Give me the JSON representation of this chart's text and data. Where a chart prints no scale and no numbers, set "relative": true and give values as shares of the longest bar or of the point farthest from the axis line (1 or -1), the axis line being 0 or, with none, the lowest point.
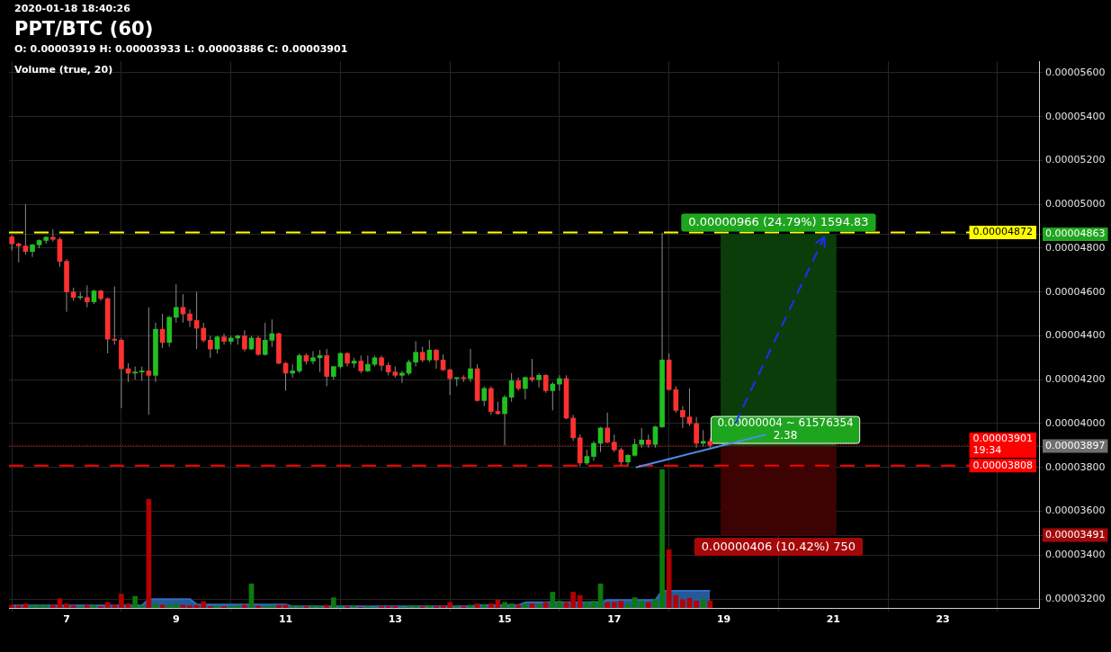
{
  "chart_data": [
    {
      "type": "candlestick",
      "title": "PPT/BTC (60)",
      "subtitle": "2020-01-18 18:40:26",
      "annotations": [
        "O: 0.00003919 H: 0.00003933 L: 0.00003886 C: 0.00003901",
        {
          "text": "0.00000004 ~ 61576354\n2.38",
          "x": "2020-01-20T03:00",
          "y": 3.897e-05
        }
      ],
      "x": [
        "2020-01-06T00:00",
        "2020-01-06T03:00",
        "2020-01-06T06:00",
        "2020-01-06T09:00",
        "2020-01-06T12:00",
        "2020-01-06T15:00",
        "2020-01-06T18:00",
        "2020-01-06T21:00",
        "2020-01-07T00:00",
        "2020-01-07T03:00",
        "2020-01-07T06:00",
        "2020-01-07T09:00",
        "2020-01-07T12:00",
        "2020-01-07T15:00",
        "2020-01-07T18:00",
        "2020-01-07T21:00",
        "2020-01-08T00:00",
        "2020-01-08T03:00",
        "2020-01-08T06:00",
        "2020-01-08T09:00",
        "2020-01-08T12:00",
        "2020-01-08T15:00",
        "2020-01-08T18:00",
        "2020-01-08T21:00",
        "2020-01-09T00:00",
        "2020-01-09T03:00",
        "2020-01-09T06:00",
        "2020-01-09T09:00",
        "2020-01-09T12:00",
        "2020-01-09T15:00",
        "2020-01-09T18:00",
        "2020-01-09T21:00",
        "2020-01-10T00:00",
        "2020-01-10T03:00",
        "2020-01-10T06:00",
        "2020-01-10T09:00",
        "2020-01-10T12:00",
        "2020-01-10T15:00",
        "2020-01-10T18:00",
        "2020-01-10T21:00",
        "2020-01-11T00:00",
        "2020-01-11T03:00",
        "2020-01-11T06:00",
        "2020-01-11T09:00",
        "2020-01-11T12:00",
        "2020-01-11T15:00",
        "2020-01-11T18:00",
        "2020-01-11T21:00",
        "2020-01-12T00:00",
        "2020-01-12T03:00",
        "2020-01-12T06:00",
        "2020-01-12T09:00",
        "2020-01-12T12:00",
        "2020-01-12T15:00",
        "2020-01-12T18:00",
        "2020-01-12T21:00",
        "2020-01-13T00:00",
        "2020-01-13T03:00",
        "2020-01-13T06:00",
        "2020-01-13T09:00",
        "2020-01-13T12:00",
        "2020-01-13T15:00",
        "2020-01-13T18:00",
        "2020-01-13T21:00",
        "2020-01-14T00:00",
        "2020-01-14T03:00",
        "2020-01-14T06:00",
        "2020-01-14T09:00",
        "2020-01-14T12:00",
        "2020-01-14T15:00",
        "2020-01-14T18:00",
        "2020-01-14T21:00",
        "2020-01-15T00:00",
        "2020-01-15T03:00",
        "2020-01-15T06:00",
        "2020-01-15T09:00",
        "2020-01-15T12:00",
        "2020-01-15T15:00",
        "2020-01-15T18:00",
        "2020-01-15T21:00",
        "2020-01-16T00:00",
        "2020-01-16T03:00",
        "2020-01-16T06:00",
        "2020-01-16T09:00",
        "2020-01-16T12:00",
        "2020-01-16T15:00",
        "2020-01-16T18:00",
        "2020-01-16T21:00",
        "2020-01-17T00:00",
        "2020-01-17T03:00",
        "2020-01-17T06:00",
        "2020-01-17T09:00",
        "2020-01-17T12:00",
        "2020-01-17T15:00",
        "2020-01-17T18:00",
        "2020-01-17T21:00",
        "2020-01-18T00:00",
        "2020-01-18T03:00",
        "2020-01-18T06:00",
        "2020-01-18T09:00",
        "2020-01-18T12:00",
        "2020-01-18T15:00",
        "2020-01-18T18:00"
      ],
      "ohlc": [
        [
          4.852e-05,
          4.86e-05,
          4.79e-05,
          4.82e-05
        ],
        [
          4.82e-05,
          4.825e-05,
          4.735e-05,
          4.81e-05
        ],
        [
          4.81e-05,
          5e-05,
          4.77e-05,
          4.785e-05
        ],
        [
          4.785e-05,
          4.82e-05,
          4.76e-05,
          4.815e-05
        ],
        [
          4.815e-05,
          4.84e-05,
          4.8e-05,
          4.835e-05
        ],
        [
          4.835e-05,
          4.855e-05,
          4.82e-05,
          4.85e-05
        ],
        [
          4.85e-05,
          4.886e-05,
          4.83e-05,
          4.84e-05
        ],
        [
          4.84e-05,
          4.85e-05,
          4.715e-05,
          4.74e-05
        ],
        [
          4.74e-05,
          4.75e-05,
          4.51e-05,
          4.6e-05
        ],
        [
          4.6e-05,
          4.62e-05,
          4.56e-05,
          4.575e-05
        ],
        [
          4.575e-05,
          4.6e-05,
          4.565e-05,
          4.575e-05
        ],
        [
          4.575e-05,
          4.63e-05,
          4.53e-05,
          4.555e-05
        ],
        [
          4.555e-05,
          4.61e-05,
          4.545e-05,
          4.605e-05
        ],
        [
          4.605e-05,
          4.61e-05,
          4.56e-05,
          4.57e-05
        ],
        [
          4.57e-05,
          4.575e-05,
          4.32e-05,
          4.385e-05
        ],
        [
          4.385e-05,
          4.625e-05,
          4.36e-05,
          4.38e-05
        ],
        [
          4.38e-05,
          4.39e-05,
          4.07e-05,
          4.25e-05
        ],
        [
          4.25e-05,
          4.275e-05,
          4.19e-05,
          4.23e-05
        ],
        [
          4.23e-05,
          4.26e-05,
          4.2e-05,
          4.235e-05
        ],
        [
          4.235e-05,
          4.26e-05,
          4.195e-05,
          4.24e-05
        ],
        [
          4.24e-05,
          4.53e-05,
          4.04e-05,
          4.22e-05
        ],
        [
          4.22e-05,
          4.46e-05,
          4.19e-05,
          4.43e-05
        ],
        [
          4.43e-05,
          4.5e-05,
          4.345e-05,
          4.37e-05
        ],
        [
          4.37e-05,
          4.49e-05,
          4.35e-05,
          4.485e-05
        ],
        [
          4.485e-05,
          4.635e-05,
          4.46e-05,
          4.53e-05
        ],
        [
          4.53e-05,
          4.59e-05,
          4.46e-05,
          4.5e-05
        ],
        [
          4.5e-05,
          4.52e-05,
          4.44e-05,
          4.47e-05
        ],
        [
          4.47e-05,
          4.6e-05,
          4.34e-05,
          4.435e-05
        ],
        [
          4.435e-05,
          4.46e-05,
          4.37e-05,
          4.38e-05
        ],
        [
          4.38e-05,
          4.4e-05,
          4.3e-05,
          4.34e-05
        ],
        [
          4.34e-05,
          4.4e-05,
          4.32e-05,
          4.395e-05
        ],
        [
          4.395e-05,
          4.41e-05,
          4.36e-05,
          4.375e-05
        ],
        [
          4.375e-05,
          4.4e-05,
          4.36e-05,
          4.39e-05
        ],
        [
          4.39e-05,
          4.405e-05,
          4.36e-05,
          4.4e-05
        ],
        [
          4.4e-05,
          4.425e-05,
          4.33e-05,
          4.34e-05
        ],
        [
          4.34e-05,
          4.4e-05,
          4.335e-05,
          4.39e-05
        ],
        [
          4.39e-05,
          4.4e-05,
          4.31e-05,
          4.315e-05
        ],
        [
          4.315e-05,
          4.46e-05,
          4.31e-05,
          4.38e-05
        ],
        [
          4.38e-05,
          4.475e-05,
          4.35e-05,
          4.41e-05
        ],
        [
          4.41e-05,
          4.415e-05,
          4.27e-05,
          4.275e-05
        ],
        [
          4.275e-05,
          4.28e-05,
          4.15e-05,
          4.23e-05
        ],
        [
          4.23e-05,
          4.27e-05,
          4.21e-05,
          4.24e-05
        ],
        [
          4.24e-05,
          4.32e-05,
          4.23e-05,
          4.31e-05
        ],
        [
          4.31e-05,
          4.32e-05,
          4.27e-05,
          4.285e-05
        ],
        [
          4.285e-05,
          4.33e-05,
          4.27e-05,
          4.3e-05
        ],
        [
          4.3e-05,
          4.335e-05,
          4.235e-05,
          4.31e-05
        ],
        [
          4.31e-05,
          4.34e-05,
          4.17e-05,
          4.215e-05
        ],
        [
          4.215e-05,
          4.26e-05,
          4.2e-05,
          4.26e-05
        ],
        [
          4.26e-05,
          4.325e-05,
          4.25e-05,
          4.32e-05
        ],
        [
          4.32e-05,
          4.325e-05,
          4.26e-05,
          4.275e-05
        ],
        [
          4.275e-05,
          4.3e-05,
          4.255e-05,
          4.285e-05
        ],
        [
          4.285e-05,
          4.31e-05,
          4.23e-05,
          4.24e-05
        ],
        [
          4.24e-05,
          4.31e-05,
          4.235e-05,
          4.27e-05
        ],
        [
          4.27e-05,
          4.31e-05,
          4.26e-05,
          4.3e-05
        ],
        [
          4.3e-05,
          4.31e-05,
          4.24e-05,
          4.265e-05
        ],
        [
          4.265e-05,
          4.28e-05,
          4.22e-05,
          4.235e-05
        ],
        [
          4.235e-05,
          4.26e-05,
          4.21e-05,
          4.22e-05
        ],
        [
          4.22e-05,
          4.24e-05,
          4.185e-05,
          4.23e-05
        ],
        [
          4.23e-05,
          4.29e-05,
          4.22e-05,
          4.28e-05
        ],
        [
          4.28e-05,
          4.375e-05,
          4.26e-05,
          4.325e-05
        ],
        [
          4.325e-05,
          4.35e-05,
          4.28e-05,
          4.29e-05
        ],
        [
          4.29e-05,
          4.38e-05,
          4.28e-05,
          4.335e-05
        ],
        [
          4.335e-05,
          4.34e-05,
          4.25e-05,
          4.29e-05
        ],
        [
          4.29e-05,
          4.315e-05,
          4.24e-05,
          4.245e-05
        ],
        [
          4.245e-05,
          4.25e-05,
          4.13e-05,
          4.205e-05
        ],
        [
          4.205e-05,
          4.21e-05,
          4.17e-05,
          4.21e-05
        ],
        [
          4.21e-05,
          4.22e-05,
          4.19e-05,
          4.205e-05
        ],
        [
          4.205e-05,
          4.34e-05,
          4.19e-05,
          4.25e-05
        ],
        [
          4.25e-05,
          4.27e-05,
          4.1e-05,
          4.105e-05
        ],
        [
          4.105e-05,
          4.17e-05,
          4.08e-05,
          4.16e-05
        ],
        [
          4.16e-05,
          4.17e-05,
          4.04e-05,
          4.055e-05
        ],
        [
          4.055e-05,
          4.1e-05,
          4.04e-05,
          4.045e-05
        ],
        [
          4.045e-05,
          4.13e-05,
          3.9e-05,
          4.12e-05
        ],
        [
          4.12e-05,
          4.23e-05,
          4.1e-05,
          4.195e-05
        ],
        [
          4.195e-05,
          4.21e-05,
          4.15e-05,
          4.16e-05
        ],
        [
          4.16e-05,
          4.215e-05,
          4.11e-05,
          4.21e-05
        ],
        [
          4.21e-05,
          4.295e-05,
          4.19e-05,
          4.2e-05
        ],
        [
          4.2e-05,
          4.23e-05,
          4.165e-05,
          4.22e-05
        ],
        [
          4.22e-05,
          4.225e-05,
          4.14e-05,
          4.15e-05
        ],
        [
          4.15e-05,
          4.19e-05,
          4.06e-05,
          4.18e-05
        ],
        [
          4.18e-05,
          4.22e-05,
          4.15e-05,
          4.205e-05
        ],
        [
          4.205e-05,
          4.22e-05,
          4.02e-05,
          4.025e-05
        ],
        [
          4.025e-05,
          4.04e-05,
          3.92e-05,
          3.935e-05
        ],
        [
          3.935e-05,
          3.95e-05,
          3.805e-05,
          3.82e-05
        ],
        [
          3.82e-05,
          3.88e-05,
          3.81e-05,
          3.85e-05
        ],
        [
          3.85e-05,
          3.92e-05,
          3.83e-05,
          3.91e-05
        ],
        [
          3.91e-05,
          3.985e-05,
          3.87e-05,
          3.98e-05
        ],
        [
          3.98e-05,
          4.05e-05,
          3.91e-05,
          3.915e-05
        ],
        [
          3.915e-05,
          3.95e-05,
          3.87e-05,
          3.88e-05
        ],
        [
          3.88e-05,
          3.89e-05,
          3.81e-05,
          3.825e-05
        ],
        [
          3.825e-05,
          3.86e-05,
          3.805e-05,
          3.855e-05
        ],
        [
          3.855e-05,
          3.93e-05,
          3.85e-05,
          3.905e-05
        ],
        [
          3.905e-05,
          3.98e-05,
          3.89e-05,
          3.925e-05
        ],
        [
          3.925e-05,
          3.95e-05,
          3.89e-05,
          3.905e-05
        ],
        [
          3.905e-05,
          3.99e-05,
          3.89e-05,
          3.985e-05
        ],
        [
          3.985e-05,
          4.87e-05,
          3.98e-05,
          4.29e-05
        ],
        [
          4.29e-05,
          4.32e-05,
          4.15e-05,
          4.155e-05
        ],
        [
          4.155e-05,
          4.17e-05,
          4.05e-05,
          4.06e-05
        ],
        [
          4.06e-05,
          4.08e-05,
          3.98e-05,
          4.03e-05
        ],
        [
          4.03e-05,
          4.16e-05,
          3.99e-05,
          4e-05
        ],
        [
          4e-05,
          4.03e-05,
          3.89e-05,
          3.91e-05
        ],
        [
          3.91e-05,
          3.97e-05,
          3.895e-05,
          3.919e-05
        ],
        [
          3.919e-05,
          3.933e-05,
          3.886e-05,
          3.901e-05
        ]
      ],
      "colors": [
        "#ff3030",
        "#ff3030",
        "#ff3030",
        "#20c020",
        "#20c020",
        "#20c020",
        "#ff3030",
        "#ff3030",
        "#ff3030",
        "#ff3030",
        "#20c020",
        "#ff3030",
        "#20c020",
        "#ff3030",
        "#ff3030",
        "#ff3030",
        "#ff3030",
        "#ff3030",
        "#20c020",
        "#20c020",
        "#ff3030",
        "#20c020",
        "#ff3030",
        "#20c020",
        "#20c020",
        "#ff3030",
        "#ff3030",
        "#ff3030",
        "#ff3030",
        "#ff3030",
        "#20c020",
        "#ff3030",
        "#20c020",
        "#20c020",
        "#ff3030",
        "#20c020",
        "#ff3030",
        "#20c020",
        "#20c020",
        "#ff3030",
        "#ff3030",
        "#20c020",
        "#20c020",
        "#ff3030",
        "#20c020",
        "#20c020",
        "#ff3030",
        "#20c020",
        "#20c020",
        "#ff3030",
        "#20c020",
        "#ff3030",
        "#20c020",
        "#20c020",
        "#ff3030",
        "#ff3030",
        "#ff3030",
        "#20c020",
        "#20c020",
        "#20c020",
        "#ff3030",
        "#20c020",
        "#ff3030",
        "#ff3030",
        "#ff3030",
        "#20c020",
        "#ff3030",
        "#20c020",
        "#ff3030",
        "#20c020",
        "#ff3030",
        "#ff3030",
        "#20c020",
        "#20c020",
        "#ff3030",
        "#20c020",
        "#ff3030",
        "#20c020",
        "#ff3030",
        "#20c020",
        "#20c020",
        "#ff3030",
        "#ff3030",
        "#ff3030",
        "#20c020",
        "#20c020",
        "#20c020",
        "#ff3030",
        "#ff3030",
        "#ff3030",
        "#20c020",
        "#20c020",
        "#20c020",
        "#ff3030",
        "#20c020",
        "#20c020",
        "#ff3030",
        "#ff3030",
        "#ff3030",
        "#ff3030",
        "#ff3030",
        "#20c020",
        "#ff3030"
      ],
      "series": [
        {
          "type": "bar",
          "x": [
            "2020-01-20T00:00"
          ],
          "base": [
            3.897e-05
          ],
          "values": [
            9.66e-06
          ],
          "value_labels": [
            "0.00000966 (24.79%) 1594.83"
          ],
          "color": "#0b3d0b"
        },
        {
          "type": "bar",
          "x": [
            "2020-01-20T00:00"
          ],
          "base": [
            3.491e-05
          ],
          "values": [
            4.06e-06
          ],
          "value_labels": [
            "0.00000406 (10.42%) 750"
          ],
          "color": "#3d0303"
        },
        {
          "type": "line",
          "x": [
            "2020-01-17T09:30",
            "2020-01-19T18:30"
          ],
          "values": [
            3.8e-05,
            3.95e-05
          ],
          "color": "#4a8fe8",
          "line_style": "solid"
        },
        {
          "type": "line",
          "x": [
            "2020-01-19T05:00",
            "2020-01-20T20:00"
          ],
          "values": [
            4e-05,
            4.85e-05
          ],
          "color": "#1e2dff",
          "line_style": "dashed"
        }
      ],
      "ref_lines": [
        {
          "axis": "y",
          "value": 4.872e-05,
          "label": "0.00004872",
          "color": "#ffff00",
          "line_style": "dashed"
        },
        {
          "axis": "y",
          "value": 3.901e-05,
          "label": "0.00003901\n19:34",
          "color": "#ff0000",
          "line_style": "dotted"
        },
        {
          "axis": "y",
          "value": 3.808e-05,
          "label": "0.00003808",
          "color": "#ff0000",
          "line_style": "dashed"
        }
      ],
      "xlim": [
        "2020-01-05T22:45",
        "2020-01-24T18:10"
      ],
      "xticks": [
        {
          "value": "2020-01-07",
          "label": "7"
        },
        {
          "value": "2020-01-09",
          "label": "9"
        },
        {
          "value": "2020-01-11",
          "label": "11"
        },
        {
          "value": "2020-01-13",
          "label": "13"
        },
        {
          "value": "2020-01-15",
          "label": "15"
        },
        {
          "value": "2020-01-17",
          "label": "17"
        },
        {
          "value": "2020-01-19",
          "label": "19"
        },
        {
          "value": "2020-01-21",
          "label": "21"
        },
        {
          "value": "2020-01-23",
          "label": "23"
        }
      ],
      "ylim": [
        3.159e-05,
        5.653e-05
      ],
      "yticks": [
        {
          "value": 3.2e-05,
          "label": "0.00003200"
        },
        {
          "value": 3.4e-05,
          "label": "0.00003400"
        },
        {
          "value": 3.491e-05,
          "label": "0.00003491"
        },
        {
          "value": 3.6e-05,
          "label": "0.00003600"
        },
        {
          "value": 3.8e-05,
          "label": "0.00003800"
        },
        {
          "value": 3.897e-05,
          "label": "0.00003897"
        },
        {
          "value": 4e-05,
          "label": "0.00004000"
        },
        {
          "value": 4.2e-05,
          "label": "0.00004200"
        },
        {
          "value": 4.4e-05,
          "label": "0.00004400"
        },
        {
          "value": 4.6e-05,
          "label": "0.00004600"
        },
        {
          "value": 4.8e-05,
          "label": "0.00004800"
        },
        {
          "value": 4.863e-05,
          "label": "0.00004863"
        },
        {
          "value": 5e-05,
          "label": "0.00005000"
        },
        {
          "value": 5.2e-05,
          "label": "0.00005200"
        },
        {
          "value": 5.4e-05,
          "label": "0.00005400"
        },
        {
          "value": 5.6e-05,
          "label": "0.00005600"
        }
      ],
      "grid": true
    },
    {
      "type": "bar",
      "title": "Volume (true, 20)",
      "relative": true,
      "tick_labels": false,
      "x": [
        "2020-01-06T00:00",
        "2020-01-06T03:00",
        "2020-01-06T06:00",
        "2020-01-06T09:00",
        "2020-01-06T12:00",
        "2020-01-06T15:00",
        "2020-01-06T18:00",
        "2020-01-06T21:00",
        "2020-01-07T00:00",
        "2020-01-07T03:00",
        "2020-01-07T06:00",
        "2020-01-07T09:00",
        "2020-01-07T12:00",
        "2020-01-07T15:00",
        "2020-01-07T18:00",
        "2020-01-07T21:00",
        "2020-01-08T00:00",
        "2020-01-08T03:00",
        "2020-01-08T06:00",
        "2020-01-08T09:00",
        "2020-01-08T12:00",
        "2020-01-08T15:00",
        "2020-01-08T18:00",
        "2020-01-08T21:00",
        "2020-01-09T00:00",
        "2020-01-09T03:00",
        "2020-01-09T06:00",
        "2020-01-09T09:00",
        "2020-01-09T12:00",
        "2020-01-09T15:00",
        "2020-01-09T18:00",
        "2020-01-09T21:00",
        "2020-01-10T00:00",
        "2020-01-10T03:00",
        "2020-01-10T06:00",
        "2020-01-10T09:00",
        "2020-01-10T12:00",
        "2020-01-10T15:00",
        "2020-01-10T18:00",
        "2020-01-10T21:00",
        "2020-01-11T00:00",
        "2020-01-11T03:00",
        "2020-01-11T06:00",
        "2020-01-11T09:00",
        "2020-01-11T12:00",
        "2020-01-11T15:00",
        "2020-01-11T18:00",
        "2020-01-11T21:00",
        "2020-01-12T00:00",
        "2020-01-12T03:00",
        "2020-01-12T06:00",
        "2020-01-12T09:00",
        "2020-01-12T12:00",
        "2020-01-12T15:00",
        "2020-01-12T18:00",
        "2020-01-12T21:00",
        "2020-01-13T00:00",
        "2020-01-13T03:00",
        "2020-01-13T06:00",
        "2020-01-13T09:00",
        "2020-01-13T12:00",
        "2020-01-13T15:00",
        "2020-01-13T18:00",
        "2020-01-13T21:00",
        "2020-01-14T00:00",
        "2020-01-14T03:00",
        "2020-01-14T06:00",
        "2020-01-14T09:00",
        "2020-01-14T12:00",
        "2020-01-14T15:00",
        "2020-01-14T18:00",
        "2020-01-14T21:00",
        "2020-01-15T00:00",
        "2020-01-15T03:00",
        "2020-01-15T06:00",
        "2020-01-15T09:00",
        "2020-01-15T12:00",
        "2020-01-15T15:00",
        "2020-01-15T18:00",
        "2020-01-15T21:00",
        "2020-01-16T00:00",
        "2020-01-16T03:00",
        "2020-01-16T06:00",
        "2020-01-16T09:00",
        "2020-01-16T12:00",
        "2020-01-16T15:00",
        "2020-01-16T18:00",
        "2020-01-16T21:00",
        "2020-01-17T00:00",
        "2020-01-17T03:00",
        "2020-01-17T06:00",
        "2020-01-17T09:00",
        "2020-01-17T12:00",
        "2020-01-17T15:00",
        "2020-01-17T18:00",
        "2020-01-17T21:00",
        "2020-01-18T00:00",
        "2020-01-18T03:00",
        "2020-01-18T06:00",
        "2020-01-18T09:00",
        "2020-01-18T12:00",
        "2020-01-18T15:00",
        "2020-01-18T18:00"
      ],
      "xlim": [
        "2020-01-05T22:45",
        "2020-01-24T18:10"
      ],
      "series": [
        {
          "values": [
            0.02,
            0.015,
            0.03,
            0.015,
            0.02,
            0.015,
            0.02,
            0.067,
            0.03,
            0.015,
            0.01,
            0.02,
            0.015,
            0.01,
            0.04,
            0.02,
            0.1,
            0.03,
            0.084,
            0.015,
            0.785,
            0.03,
            0.02,
            0.02,
            0.03,
            0.02,
            0.015,
            0.02,
            0.047,
            0.01,
            0.015,
            0.01,
            0.01,
            0.015,
            0.02,
            0.174,
            0.015,
            0.01,
            0.015,
            0.02,
            0.02,
            0.015,
            0.01,
            0.01,
            0.015,
            0.01,
            0.02,
            0.074,
            0.01,
            0.01,
            0.01,
            0.005,
            0.01,
            0.005,
            0.01,
            0.01,
            0.01,
            0.005,
            0.01,
            0.015,
            0.01,
            0.015,
            0.01,
            0.015,
            0.04,
            0.01,
            0.01,
            0.02,
            0.03,
            0.02,
            0.03,
            0.057,
            0.04,
            0.03,
            0.02,
            0.03,
            0.03,
            0.025,
            0.04,
            0.114,
            0.05,
            0.04,
            0.114,
            0.09,
            0.04,
            0.05,
            0.174,
            0.04,
            0.04,
            0.05,
            0.03,
            0.074,
            0.05,
            0.04,
            0.06,
            1,
            0.42,
            0.09,
            0.06,
            0.07,
            0.05,
            0.06,
            0.05
          ],
          "colors": [
            "#b30000",
            "#b30000",
            "#b30000",
            "#0d7a0d",
            "#0d7a0d",
            "#0d7a0d",
            "#b30000",
            "#b30000",
            "#b30000",
            "#b30000",
            "#0d7a0d",
            "#b30000",
            "#0d7a0d",
            "#b30000",
            "#b30000",
            "#b30000",
            "#b30000",
            "#b30000",
            "#0d7a0d",
            "#0d7a0d",
            "#b30000",
            "#0d7a0d",
            "#b30000",
            "#0d7a0d",
            "#0d7a0d",
            "#b30000",
            "#b30000",
            "#b30000",
            "#b30000",
            "#b30000",
            "#0d7a0d",
            "#b30000",
            "#0d7a0d",
            "#0d7a0d",
            "#b30000",
            "#0d7a0d",
            "#b30000",
            "#0d7a0d",
            "#0d7a0d",
            "#b30000",
            "#b30000",
            "#0d7a0d",
            "#0d7a0d",
            "#b30000",
            "#0d7a0d",
            "#0d7a0d",
            "#b30000",
            "#0d7a0d",
            "#0d7a0d",
            "#b30000",
            "#0d7a0d",
            "#b30000",
            "#0d7a0d",
            "#0d7a0d",
            "#b30000",
            "#b30000",
            "#b30000",
            "#0d7a0d",
            "#0d7a0d",
            "#0d7a0d",
            "#b30000",
            "#0d7a0d",
            "#b30000",
            "#b30000",
            "#b30000",
            "#0d7a0d",
            "#b30000",
            "#0d7a0d",
            "#b30000",
            "#0d7a0d",
            "#b30000",
            "#b30000",
            "#0d7a0d",
            "#0d7a0d",
            "#b30000",
            "#0d7a0d",
            "#b30000",
            "#0d7a0d",
            "#b30000",
            "#0d7a0d",
            "#0d7a0d",
            "#b30000",
            "#b30000",
            "#b30000",
            "#0d7a0d",
            "#0d7a0d",
            "#0d7a0d",
            "#b30000",
            "#b30000",
            "#b30000",
            "#0d7a0d",
            "#0d7a0d",
            "#0d7a0d",
            "#b30000",
            "#0d7a0d",
            "#0d7a0d",
            "#b30000",
            "#b30000",
            "#b30000",
            "#b30000",
            "#b30000",
            "#0d7a0d",
            "#b30000"
          ]
        },
        {
          "type": "area",
          "color": "#2e6fc0",
          "values": [
            0.018,
            0.018,
            0.018,
            0.018,
            0.018,
            0.018,
            0.018,
            0.018,
            0.018,
            0.018,
            0.018,
            0.018,
            0.018,
            0.018,
            0.018,
            0.018,
            0.018,
            0.018,
            0.018,
            0.018,
            0.064,
            0.064,
            0.064,
            0.064,
            0.064,
            0.064,
            0.064,
            0.025,
            0.025,
            0.025,
            0.025,
            0.025,
            0.025,
            0.025,
            0.025,
            0.025,
            0.025,
            0.025,
            0.025,
            0.025,
            0.025,
            0.012,
            0.012,
            0.012,
            0.012,
            0.012,
            0.012,
            0.012,
            0.012,
            0.012,
            0.012,
            0.012,
            0.012,
            0.012,
            0.012,
            0.012,
            0.012,
            0.012,
            0.012,
            0.012,
            0.012,
            0.012,
            0.012,
            0.012,
            0.012,
            0.012,
            0.012,
            0.012,
            0.02,
            0.02,
            0.02,
            0.02,
            0.02,
            0.02,
            0.02,
            0.04,
            0.04,
            0.04,
            0.04,
            0.04,
            0.04,
            0.04,
            0.04,
            0.04,
            0.04,
            0.04,
            0.04,
            0.057,
            0.057,
            0.057,
            0.057,
            0.057,
            0.057,
            0.057,
            0.057,
            0.124,
            0.124,
            0.124,
            0.124,
            0.124,
            0.124,
            0.124,
            0.124
          ]
        }
      ]
    }
  ]
}
